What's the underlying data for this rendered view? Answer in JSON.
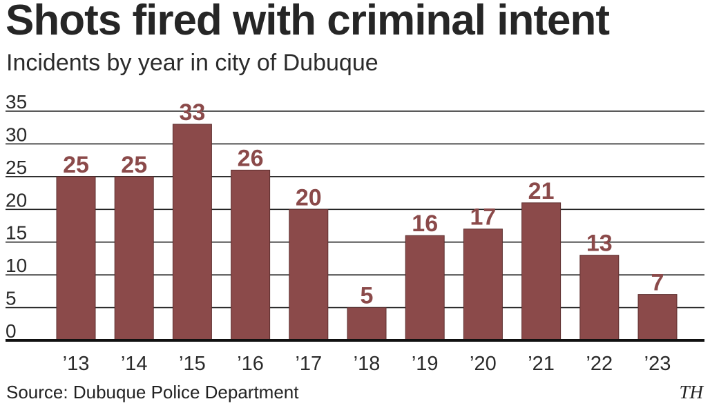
{
  "chart_data": {
    "type": "bar",
    "title": "Shots fired with criminal intent",
    "subtitle": "Incidents by year in city of Dubuque",
    "categories": [
      "’13",
      "’14",
      "’15",
      "’16",
      "’17",
      "’18",
      "’19",
      "’20",
      "’21",
      "’22",
      "’23"
    ],
    "values": [
      25,
      25,
      33,
      26,
      20,
      5,
      16,
      17,
      21,
      13,
      7
    ],
    "ylim": [
      0,
      35
    ],
    "yticks": [
      0,
      5,
      10,
      15,
      20,
      25,
      30,
      35
    ],
    "grid": true,
    "bar_color": "#8b4a4a",
    "label_color": "#8b4a4a",
    "grid_color": "#222222"
  },
  "source": "Source: Dubuque Police Department",
  "credit": "TH"
}
